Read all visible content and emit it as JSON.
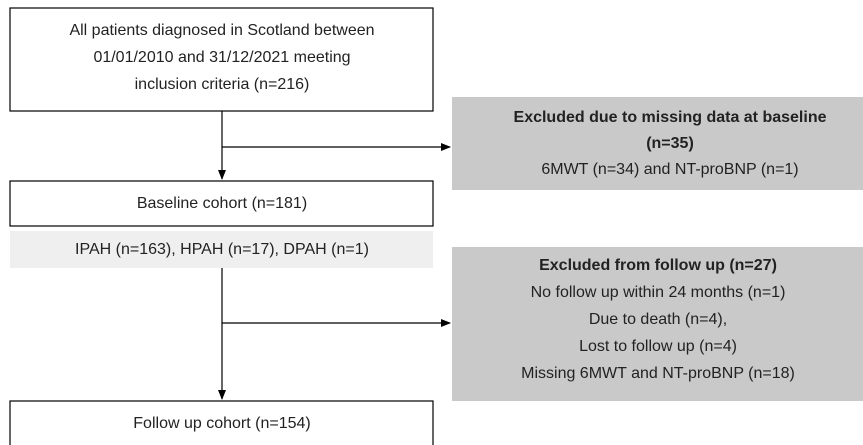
{
  "nodes": [
    {
      "lines": [
        "All patients diagnosed in Scotland between",
        "01/01/2010 and 31/12/2021 meeting",
        "inclusion criteria (n=216)"
      ]
    },
    {
      "lines": [
        "Excluded due to missing data at baseline",
        "(n=35)",
        "6MWT (n=34) and NT-proBNP (n=1)"
      ]
    },
    {
      "lines": [
        "Baseline cohort (n=181)"
      ]
    },
    {
      "lines": [
        "IPAH (n=163), HPAH (n=17), DPAH (n=1)"
      ]
    },
    {
      "lines": [
        "Excluded from follow up (n=27)",
        "No follow up within 24 months (n=1)",
        "Due to death (n=4),",
        "Lost to follow up (n=4)",
        "Missing 6MWT and NT-proBNP (n=18)"
      ]
    },
    {
      "lines": [
        "Follow up cohort (n=154)"
      ]
    }
  ]
}
